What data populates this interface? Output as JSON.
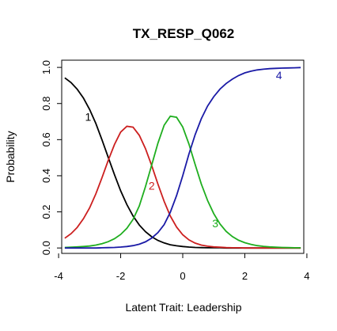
{
  "chart_data": {
    "type": "line",
    "title": "TX_RESP_Q062",
    "xlabel": "Latent Trait: Leadership",
    "ylabel": "Probability",
    "xlim": [
      -3.9,
      3.9
    ],
    "ylim": [
      -0.03,
      1.04
    ],
    "xticks": [
      -4,
      -2,
      0,
      2,
      4
    ],
    "xtick_labels": [
      "-4",
      "-2",
      "0",
      "2",
      "4"
    ],
    "yticks": [
      0.0,
      0.2,
      0.4,
      0.6,
      0.8,
      1.0
    ],
    "ytick_labels": [
      "0.0",
      "0.2",
      "0.4",
      "0.6",
      "0.8",
      "1.0"
    ],
    "grid": false,
    "x": [
      -3.8,
      -3.6,
      -3.4,
      -3.2,
      -3.0,
      -2.8,
      -2.6,
      -2.4,
      -2.2,
      -2.0,
      -1.8,
      -1.6,
      -1.4,
      -1.2,
      -1.0,
      -0.8,
      -0.6,
      -0.4,
      -0.2,
      0.0,
      0.2,
      0.4,
      0.6,
      0.8,
      1.0,
      1.2,
      1.4,
      1.6,
      1.8,
      2.0,
      2.2,
      2.4,
      2.6,
      2.8,
      3.0,
      3.2,
      3.4,
      3.6,
      3.8
    ],
    "series": [
      {
        "name": "1",
        "color": "#000000",
        "values": [
          0.942,
          0.916,
          0.879,
          0.83,
          0.767,
          0.689,
          0.598,
          0.502,
          0.406,
          0.317,
          0.24,
          0.177,
          0.127,
          0.09,
          0.062,
          0.042,
          0.028,
          0.018,
          0.012,
          0.008,
          0.005,
          0.003,
          0.002,
          0.001,
          0.001,
          0.001,
          0.0,
          0.0,
          0.0,
          0.0,
          0.0,
          0.0,
          0.0,
          0.0,
          0.0,
          0.0,
          0.0,
          0.0,
          0.0
        ],
        "label_x": -3.05,
        "label_y": 0.72
      },
      {
        "name": "2",
        "color": "#cc1f1f",
        "values": [
          0.054,
          0.079,
          0.114,
          0.162,
          0.222,
          0.3,
          0.39,
          0.485,
          0.573,
          0.642,
          0.674,
          0.669,
          0.624,
          0.55,
          0.456,
          0.354,
          0.258,
          0.177,
          0.116,
          0.073,
          0.045,
          0.027,
          0.016,
          0.01,
          0.006,
          0.004,
          0.002,
          0.001,
          0.001,
          0.0,
          0.0,
          0.0,
          0.0,
          0.0,
          0.0,
          0.0,
          0.0,
          0.0,
          0.0
        ],
        "label_x": -1.0,
        "label_y": 0.34
      },
      {
        "name": "3",
        "color": "#1fae1f",
        "values": [
          0.003,
          0.004,
          0.006,
          0.008,
          0.011,
          0.016,
          0.024,
          0.035,
          0.051,
          0.075,
          0.109,
          0.158,
          0.233,
          0.34,
          0.46,
          0.58,
          0.68,
          0.73,
          0.724,
          0.67,
          0.576,
          0.462,
          0.354,
          0.263,
          0.19,
          0.133,
          0.092,
          0.063,
          0.043,
          0.029,
          0.02,
          0.013,
          0.009,
          0.006,
          0.004,
          0.003,
          0.002,
          0.001,
          0.001
        ],
        "label_x": 1.05,
        "label_y": 0.13
      },
      {
        "name": "4",
        "color": "#1a1aa6",
        "values": [
          0.0,
          0.0,
          0.0,
          0.0,
          0.0,
          0.0,
          0.001,
          0.002,
          0.003,
          0.005,
          0.008,
          0.013,
          0.021,
          0.034,
          0.055,
          0.085,
          0.129,
          0.198,
          0.29,
          0.4,
          0.52,
          0.628,
          0.716,
          0.786,
          0.838,
          0.88,
          0.911,
          0.935,
          0.955,
          0.97,
          0.979,
          0.986,
          0.99,
          0.993,
          0.995,
          0.996,
          0.997,
          0.998,
          0.999
        ],
        "label_x": 3.1,
        "label_y": 0.95
      }
    ]
  }
}
